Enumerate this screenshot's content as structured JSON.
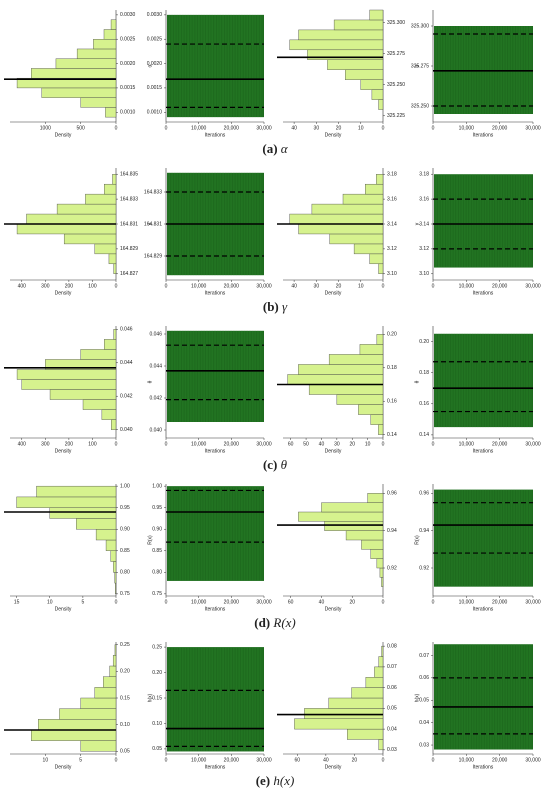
{
  "chart_data": [
    {
      "type": "histogram",
      "bins": [
        0.0009,
        0.0011,
        0.0013,
        0.0015,
        0.0017,
        0.0019,
        0.0021,
        0.0023,
        0.0025,
        0.0027,
        0.0029
      ],
      "values": [
        150,
        500,
        1050,
        1400,
        1200,
        850,
        550,
        320,
        170,
        70
      ],
      "color": "#d6f28e",
      "xlim": [
        1500,
        0
      ],
      "xticks": [
        1000,
        500,
        0
      ],
      "xlabel": "Density",
      "ylim": [
        0.0008,
        0.0031
      ],
      "yticks": [
        {
          "value": 0.001,
          "label": "0.0010"
        },
        0.0015,
        {
          "value": 0.002,
          "label": "0.0020"
        },
        0.0025,
        {
          "value": 0.003,
          "label": "0.0030"
        }
      ],
      "mean": 0.00168
    },
    {
      "type": "trace",
      "color": "#1e6b1e",
      "range": [
        0.0009,
        0.003
      ],
      "xlim": [
        0,
        30000
      ],
      "xticks": [
        0,
        {
          "value": 10000,
          "label": "10,000"
        },
        {
          "value": 20000,
          "label": "20,000"
        },
        {
          "value": 30000,
          "label": "30,000"
        }
      ],
      "xlabel": "Iterations",
      "ylabel": "α",
      "ylim": [
        0.0008,
        0.0031
      ],
      "yticks": [
        {
          "value": 0.001,
          "label": "0.0010"
        },
        0.0015,
        {
          "value": 0.002,
          "label": "0.0020"
        },
        0.0025,
        {
          "value": 0.003,
          "label": "0.0030"
        }
      ],
      "mean": 0.00168,
      "interval": [
        0.0011,
        0.0024
      ]
    },
    {
      "type": "histogram",
      "bins": [
        325.23,
        325.238,
        325.246,
        325.254,
        325.262,
        325.27,
        325.278,
        325.286,
        325.294,
        325.302,
        325.31
      ],
      "values": [
        2,
        5,
        10,
        17,
        25,
        34,
        42,
        38,
        22,
        6
      ],
      "color": "#d6f28e",
      "xlim": [
        45,
        0
      ],
      "xticks": [
        40,
        30,
        20,
        10,
        0
      ],
      "xlabel": "Density",
      "ylim": [
        325.22,
        325.31
      ],
      "yticks": [
        325.225,
        {
          "value": 325.25,
          "label": "325.250"
        },
        325.275,
        {
          "value": 325.3,
          "label": "325.300"
        }
      ],
      "mean": 325.272
    },
    {
      "type": "trace",
      "color": "#1e6b1e",
      "range": [
        325.245,
        325.3
      ],
      "xlim": [
        0,
        30000
      ],
      "xticks": [
        0,
        {
          "value": 10000,
          "label": "10,000"
        },
        {
          "value": 20000,
          "label": "20,000"
        },
        {
          "value": 30000,
          "label": "30,000"
        }
      ],
      "xlabel": "Iterations",
      "ylabel": "α",
      "ylim": [
        325.24,
        325.31
      ],
      "yticks": [
        {
          "value": 325.25,
          "label": "325.250"
        },
        325.275,
        {
          "value": 325.3,
          "label": "325.300"
        }
      ],
      "mean": 325.272,
      "interval": [
        325.25,
        325.295
      ]
    },
    {
      "type": "histogram",
      "bins": [
        164.827,
        164.8278,
        164.8286,
        164.8294,
        164.8302,
        164.831,
        164.8318,
        164.8326,
        164.8334,
        164.8342,
        164.835
      ],
      "values": [
        10,
        30,
        90,
        220,
        420,
        380,
        250,
        130,
        50,
        15
      ],
      "color": "#d6f28e",
      "xlim": [
        450,
        0
      ],
      "xticks": [
        400,
        300,
        200,
        100,
        0
      ],
      "xlabel": "Density",
      "ylim": [
        164.8265,
        164.8355
      ],
      "yticks": [
        164.827,
        164.829,
        164.831,
        164.833,
        164.835
      ],
      "mean": 164.831
    },
    {
      "type": "trace",
      "color": "#1e6b1e",
      "range": [
        164.8278,
        164.8342
      ],
      "xlim": [
        0,
        30000
      ],
      "xticks": [
        0,
        {
          "value": 10000,
          "label": "10,000"
        },
        {
          "value": 20000,
          "label": "20,000"
        },
        {
          "value": 30000,
          "label": "30,000"
        }
      ],
      "xlabel": "Iterations",
      "ylabel": "γ",
      "ylim": [
        164.8275,
        164.8345
      ],
      "yticks": [
        164.829,
        164.831,
        164.833
      ],
      "mean": 164.831,
      "interval": [
        164.829,
        164.833
      ]
    },
    {
      "type": "histogram",
      "bins": [
        3.1,
        3.108,
        3.116,
        3.124,
        3.132,
        3.14,
        3.148,
        3.156,
        3.164,
        3.172,
        3.18
      ],
      "values": [
        2,
        6,
        13,
        24,
        38,
        42,
        32,
        18,
        8,
        3
      ],
      "color": "#d6f28e",
      "xlim": [
        45,
        0
      ],
      "xticks": [
        40,
        30,
        20,
        10,
        0
      ],
      "xlabel": "Density",
      "ylim": [
        3.095,
        3.185
      ],
      "yticks": [
        {
          "value": 3.1,
          "label": "3.10"
        },
        3.12,
        3.14,
        3.16,
        3.18
      ],
      "mean": 3.14
    },
    {
      "type": "trace",
      "color": "#1e6b1e",
      "range": [
        3.105,
        3.18
      ],
      "xlim": [
        0,
        30000
      ],
      "xticks": [
        0,
        {
          "value": 10000,
          "label": "10,000"
        },
        {
          "value": 20000,
          "label": "20,000"
        },
        {
          "value": 30000,
          "label": "30,000"
        }
      ],
      "xlabel": "Iterations",
      "ylabel": "γ",
      "ylim": [
        3.095,
        3.185
      ],
      "yticks": [
        {
          "value": 3.1,
          "label": "3.10"
        },
        3.12,
        3.14,
        3.16,
        3.18
      ],
      "mean": 3.14,
      "interval": [
        3.12,
        3.16
      ]
    },
    {
      "type": "histogram",
      "bins": [
        0.04,
        0.0406,
        0.0412,
        0.0418,
        0.0424,
        0.043,
        0.0436,
        0.0442,
        0.0448,
        0.0454,
        0.046
      ],
      "values": [
        20,
        60,
        140,
        280,
        400,
        420,
        300,
        150,
        50,
        10
      ],
      "color": "#d6f28e",
      "xlim": [
        450,
        0
      ],
      "xticks": [
        400,
        300,
        200,
        100,
        0
      ],
      "xlabel": "Density",
      "ylim": [
        0.0395,
        0.0462
      ],
      "yticks": [
        {
          "value": 0.04,
          "label": "0.040"
        },
        0.042,
        0.044,
        0.046
      ],
      "mean": 0.0437
    },
    {
      "type": "trace",
      "color": "#1e6b1e",
      "range": [
        0.0405,
        0.0462
      ],
      "xlim": [
        0,
        30000
      ],
      "xticks": [
        0,
        {
          "value": 10000,
          "label": "10,000"
        },
        {
          "value": 20000,
          "label": "20,000"
        },
        {
          "value": 30000,
          "label": "30,000"
        }
      ],
      "xlabel": "Iterations",
      "ylabel": "θ",
      "ylim": [
        0.0395,
        0.0465
      ],
      "yticks": [
        {
          "value": 0.04,
          "label": "0.040"
        },
        0.042,
        0.044,
        0.046
      ],
      "mean": 0.0437,
      "interval": [
        0.0419,
        0.0453
      ]
    },
    {
      "type": "histogram",
      "bins": [
        0.14,
        0.146,
        0.152,
        0.158,
        0.164,
        0.17,
        0.176,
        0.182,
        0.188,
        0.194,
        0.2
      ],
      "values": [
        3,
        8,
        16,
        30,
        48,
        62,
        55,
        35,
        15,
        4
      ],
      "color": "#d6f28e",
      "xlim": [
        65,
        0
      ],
      "xticks": [
        60,
        50,
        40,
        30,
        20,
        10,
        0
      ],
      "xlabel": "Density",
      "ylim": [
        0.138,
        0.205
      ],
      "yticks": [
        0.14,
        0.16,
        0.18,
        {
          "value": 0.2,
          "label": "0.20"
        }
      ],
      "mean": 0.17
    },
    {
      "type": "trace",
      "color": "#1e6b1e",
      "range": [
        0.145,
        0.205
      ],
      "xlim": [
        0,
        30000
      ],
      "xticks": [
        0,
        {
          "value": 10000,
          "label": "10,000"
        },
        {
          "value": 20000,
          "label": "20,000"
        },
        {
          "value": 30000,
          "label": "30,000"
        }
      ],
      "xlabel": "Iterations",
      "ylabel": "θ",
      "ylim": [
        0.138,
        0.21
      ],
      "yticks": [
        0.14,
        0.16,
        0.18,
        {
          "value": 0.2,
          "label": "0.20"
        }
      ],
      "mean": 0.17,
      "interval": [
        0.155,
        0.187
      ]
    },
    {
      "type": "histogram",
      "bins": [
        0.75,
        0.775,
        0.8,
        0.825,
        0.85,
        0.875,
        0.9,
        0.925,
        0.95,
        0.975,
        1.0
      ],
      "values": [
        0.1,
        0.2,
        0.4,
        0.8,
        1.5,
        3,
        6,
        10,
        15,
        12
      ],
      "color": "#d6f28e",
      "xlim": [
        16,
        0
      ],
      "xticks": [
        15,
        10,
        5,
        0
      ],
      "xlabel": "Density",
      "ylim": [
        0.745,
        1.005
      ],
      "yticks": [
        0.75,
        {
          "value": 0.8,
          "label": "0.80"
        },
        0.85,
        {
          "value": 0.9,
          "label": "0.90"
        },
        0.95,
        {
          "value": 1.0,
          "label": "1.00"
        }
      ],
      "mean": 0.94
    },
    {
      "type": "trace",
      "color": "#1e6b1e",
      "range": [
        0.78,
        1.0
      ],
      "xlim": [
        0,
        30000
      ],
      "xticks": [
        0,
        {
          "value": 10000,
          "label": "10,000"
        },
        {
          "value": 20000,
          "label": "20,000"
        },
        {
          "value": 30000,
          "label": "30,000"
        }
      ],
      "xlabel": "Iterations",
      "ylabel": "R(x)",
      "ylim": [
        0.745,
        1.005
      ],
      "yticks": [
        0.75,
        {
          "value": 0.8,
          "label": "0.80"
        },
        0.85,
        {
          "value": 0.9,
          "label": "0.90"
        },
        0.95,
        {
          "value": 1.0,
          "label": "1.00"
        }
      ],
      "mean": 0.94,
      "interval": [
        0.87,
        0.99
      ]
    },
    {
      "type": "histogram",
      "bins": [
        0.91,
        0.915,
        0.92,
        0.925,
        0.93,
        0.935,
        0.94,
        0.945,
        0.95,
        0.955,
        0.96
      ],
      "values": [
        1,
        2,
        4,
        8,
        14,
        24,
        38,
        55,
        40,
        10
      ],
      "color": "#d6f28e",
      "xlim": [
        65,
        0
      ],
      "xticks": [
        60,
        40,
        20,
        0
      ],
      "xlabel": "Density",
      "ylim": [
        0.905,
        0.965
      ],
      "yticks": [
        0.92,
        0.94,
        0.96
      ],
      "mean": 0.943
    },
    {
      "type": "trace",
      "color": "#1e6b1e",
      "range": [
        0.91,
        0.962
      ],
      "xlim": [
        0,
        30000
      ],
      "xticks": [
        0,
        {
          "value": 10000,
          "label": "10,000"
        },
        {
          "value": 20000,
          "label": "20,000"
        },
        {
          "value": 30000,
          "label": "30,000"
        }
      ],
      "xlabel": "Iterations",
      "ylabel": "R(x)",
      "ylim": [
        0.905,
        0.965
      ],
      "yticks": [
        0.92,
        0.94,
        0.96
      ],
      "mean": 0.943,
      "interval": [
        0.928,
        0.955
      ]
    },
    {
      "type": "histogram",
      "bins": [
        0.05,
        0.07,
        0.09,
        0.11,
        0.13,
        0.15,
        0.17,
        0.19,
        0.21,
        0.23,
        0.25
      ],
      "values": [
        5,
        12,
        11,
        8,
        5,
        3,
        1.8,
        0.9,
        0.4,
        0.15
      ],
      "color": "#d6f28e",
      "xlim": [
        15,
        0
      ],
      "xticks": [
        10,
        5,
        0
      ],
      "xlabel": "Density",
      "ylim": [
        0.045,
        0.255
      ],
      "yticks": [
        0.05,
        {
          "value": 0.1,
          "label": "0.10"
        },
        0.15,
        {
          "value": 0.2,
          "label": "0.20"
        },
        0.25
      ],
      "mean": 0.09
    },
    {
      "type": "trace",
      "color": "#1e6b1e",
      "range": [
        0.045,
        0.25
      ],
      "xlim": [
        0,
        30000
      ],
      "xticks": [
        0,
        {
          "value": 10000,
          "label": "10,000"
        },
        {
          "value": 20000,
          "label": "20,000"
        },
        {
          "value": 30000,
          "label": "30,000"
        }
      ],
      "xlabel": "Iterations",
      "ylabel": "h(x)",
      "ylim": [
        0.04,
        0.26
      ],
      "yticks": [
        0.05,
        {
          "value": 0.1,
          "label": "0.10"
        },
        0.15,
        {
          "value": 0.2,
          "label": "0.20"
        },
        0.25
      ],
      "mean": 0.09,
      "interval": [
        0.055,
        0.165
      ]
    },
    {
      "type": "histogram",
      "bins": [
        0.03,
        0.035,
        0.04,
        0.045,
        0.05,
        0.055,
        0.06,
        0.065,
        0.07,
        0.075,
        0.08
      ],
      "values": [
        3,
        25,
        62,
        55,
        38,
        22,
        12,
        6,
        3,
        1
      ],
      "color": "#d6f28e",
      "xlim": [
        70,
        0
      ],
      "xticks": [
        60,
        40,
        20,
        0
      ],
      "xlabel": "Density",
      "ylim": [
        0.028,
        0.082
      ],
      "yticks": [
        0.03,
        0.04,
        0.05,
        0.06,
        0.07,
        0.08
      ],
      "mean": 0.047
    },
    {
      "type": "trace",
      "color": "#1e6b1e",
      "range": [
        0.028,
        0.075
      ],
      "xlim": [
        0,
        30000
      ],
      "xticks": [
        0,
        {
          "value": 10000,
          "label": "10,000"
        },
        {
          "value": 20000,
          "label": "20,000"
        },
        {
          "value": 30000,
          "label": "30,000"
        }
      ],
      "xlabel": "Iterations",
      "ylabel": "h(x)",
      "ylim": [
        0.026,
        0.076
      ],
      "yticks": [
        0.03,
        0.04,
        0.05,
        0.06,
        0.07
      ],
      "mean": 0.047,
      "interval": [
        0.035,
        0.06
      ]
    }
  ],
  "captions": [
    {
      "label": "(a)",
      "symbol": "α"
    },
    {
      "label": "(b)",
      "symbol": "γ"
    },
    {
      "label": "(c)",
      "symbol": "θ"
    },
    {
      "label": "(d)",
      "symbol": "R(x)"
    },
    {
      "label": "(e)",
      "symbol": "h(x)"
    }
  ]
}
